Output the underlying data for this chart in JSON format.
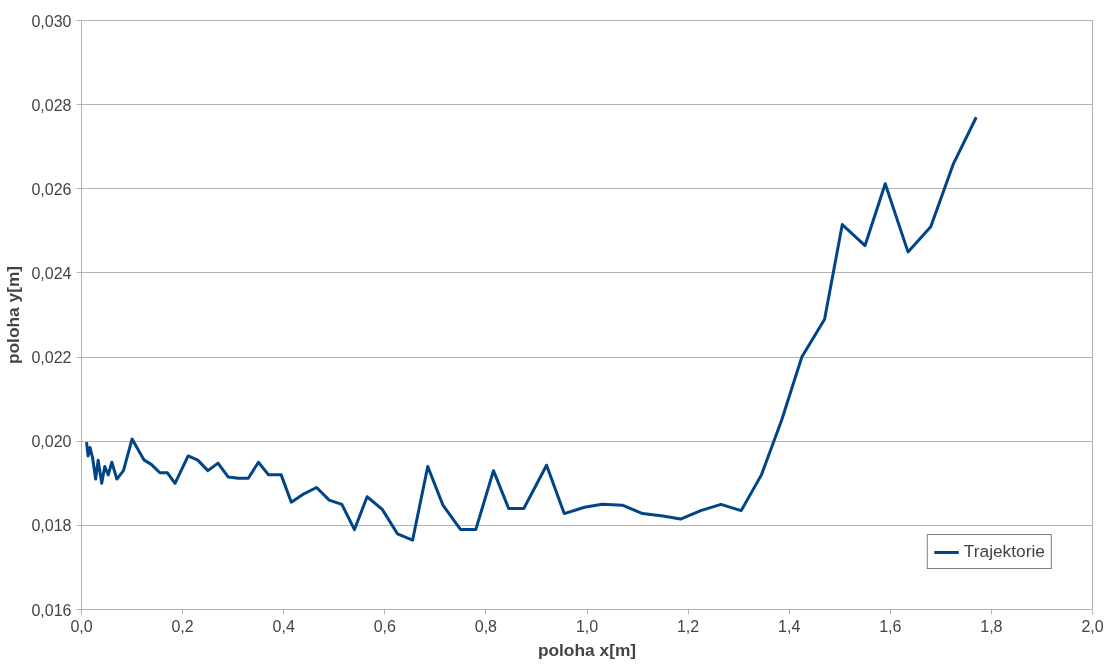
{
  "chart_data": {
    "type": "line",
    "xlabel": "poloha x[m]",
    "ylabel": "poloha y[m]",
    "x": [
      0.01,
      0.013,
      0.017,
      0.022,
      0.028,
      0.033,
      0.04,
      0.046,
      0.053,
      0.06,
      0.07,
      0.083,
      0.1,
      0.124,
      0.138,
      0.155,
      0.17,
      0.185,
      0.211,
      0.23,
      0.25,
      0.27,
      0.29,
      0.31,
      0.33,
      0.35,
      0.37,
      0.395,
      0.415,
      0.44,
      0.465,
      0.49,
      0.515,
      0.54,
      0.565,
      0.595,
      0.625,
      0.655,
      0.685,
      0.715,
      0.75,
      0.78,
      0.815,
      0.845,
      0.875,
      0.92,
      0.955,
      0.995,
      1.03,
      1.07,
      1.11,
      1.15,
      1.185,
      1.225,
      1.265,
      1.305,
      1.345,
      1.385,
      1.425,
      1.47,
      1.505,
      1.55,
      1.59,
      1.635,
      1.68,
      1.725,
      1.77
    ],
    "series": [
      {
        "name": "Trajektorie",
        "color": "#004586",
        "values": [
          0.01998,
          0.01965,
          0.01985,
          0.0196,
          0.0191,
          0.01955,
          0.019,
          0.0194,
          0.0192,
          0.0195,
          0.0191,
          0.0193,
          0.02005,
          0.01955,
          0.01945,
          0.01925,
          0.01925,
          0.019,
          0.01965,
          0.01955,
          0.0193,
          0.01948,
          0.01915,
          0.01912,
          0.01912,
          0.0195,
          0.0192,
          0.0192,
          0.01855,
          0.01875,
          0.0189,
          0.0186,
          0.0185,
          0.0179,
          0.01868,
          0.01838,
          0.0178,
          0.01765,
          0.0194,
          0.01848,
          0.0179,
          0.0179,
          0.0193,
          0.0184,
          0.0184,
          0.01943,
          0.01828,
          0.01843,
          0.0185,
          0.01848,
          0.01828,
          0.01822,
          0.01815,
          0.01835,
          0.0185,
          0.01835,
          0.0192,
          0.0205,
          0.022,
          0.0229,
          0.02515,
          0.02465,
          0.02612,
          0.0245,
          0.0251,
          0.0266,
          0.0277
        ]
      }
    ],
    "xlim": [
      0,
      2
    ],
    "ylim": [
      0.016,
      0.03
    ],
    "xticks": [
      {
        "value": 0,
        "label": "0,0"
      },
      {
        "value": 0.2,
        "label": "0,2"
      },
      {
        "value": 0.4,
        "label": "0,4"
      },
      {
        "value": 0.6,
        "label": "0,6"
      },
      {
        "value": 0.8,
        "label": "0,8"
      },
      {
        "value": 1.0,
        "label": "1,0"
      },
      {
        "value": 1.2,
        "label": "1,2"
      },
      {
        "value": 1.4,
        "label": "1,4"
      },
      {
        "value": 1.6,
        "label": "1,6"
      },
      {
        "value": 1.8,
        "label": "1,8"
      },
      {
        "value": 2.0,
        "label": "2,0"
      }
    ],
    "yticks": [
      {
        "value": 0.016,
        "label": "0,016"
      },
      {
        "value": 0.018,
        "label": "0,018"
      },
      {
        "value": 0.02,
        "label": "0,020"
      },
      {
        "value": 0.022,
        "label": "0,022"
      },
      {
        "value": 0.024,
        "label": "0,024"
      },
      {
        "value": 0.026,
        "label": "0,026"
      },
      {
        "value": 0.028,
        "label": "0,028"
      },
      {
        "value": 0.03,
        "label": "0,030"
      }
    ],
    "grid": "y",
    "legend": "bottom right",
    "marker": "none",
    "line_style": "solid"
  }
}
